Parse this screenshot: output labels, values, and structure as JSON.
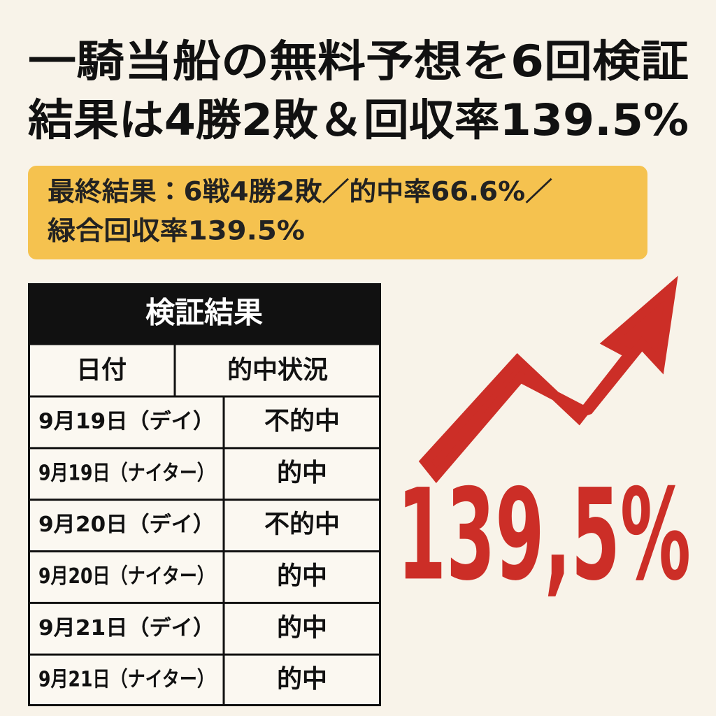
{
  "header": {
    "title_lines": [
      "一騎当船の無料予想を6回検証",
      "結果は4勝2敗＆回収率139.5%"
    ]
  },
  "summary": {
    "lines": [
      "最終結果：6戦4勝2敗／的中率66.6%／",
      "緑合回収率139.5%"
    ]
  },
  "table": {
    "title": "検証結果",
    "columns": [
      "日付",
      "的中状況"
    ],
    "rows": [
      [
        "9月19日（デイ）",
        "不的中"
      ],
      [
        "9月19日（ナイター）",
        "的中"
      ],
      [
        "9月20日（デイ）",
        "不的中"
      ],
      [
        "9月20日（ナイター）",
        "的中"
      ],
      [
        "9月21日（デイ）",
        "的中"
      ],
      [
        "9月21日（ナイター）",
        "的中"
      ]
    ]
  },
  "highlight": {
    "text": "139,5%"
  }
}
